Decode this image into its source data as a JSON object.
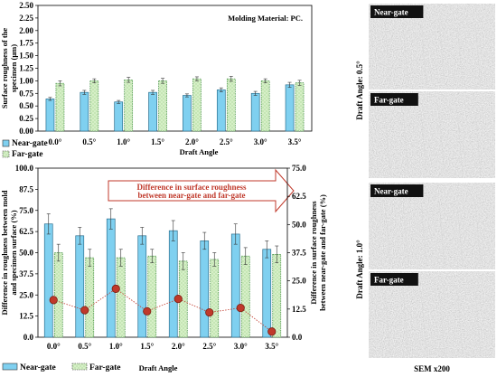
{
  "chart_data": [
    {
      "type": "bar",
      "categories": [
        "0.0°",
        "0.5°",
        "1.0°",
        "1.5°",
        "2.0°",
        "2.5°",
        "3.0°",
        "3.5°"
      ],
      "series": [
        {
          "name": "Near-gate",
          "values": [
            0.64,
            0.77,
            0.58,
            0.77,
            0.71,
            0.82,
            0.75,
            0.92
          ],
          "errors": [
            0.03,
            0.04,
            0.03,
            0.04,
            0.03,
            0.04,
            0.04,
            0.05
          ],
          "color": "#7fd0f0"
        },
        {
          "name": "Far-gate",
          "values": [
            0.95,
            1.0,
            1.02,
            1.0,
            1.04,
            1.04,
            1.0,
            0.96
          ],
          "errors": [
            0.05,
            0.04,
            0.05,
            0.05,
            0.04,
            0.05,
            0.04,
            0.05
          ],
          "color": "#d6efc7"
        }
      ],
      "title": "",
      "annotation": "Molding Material: PC.",
      "xlabel": "Draft Angle",
      "ylabel": [
        "Surface roughness of the",
        "specimen (μm)"
      ],
      "ylim": [
        0,
        2.5
      ],
      "yticks": [
        "0.00",
        "0.25",
        "0.50",
        "0.75",
        "1.00",
        "1.25",
        "1.50",
        "1.75",
        "2.00",
        "2.25",
        "2.50"
      ],
      "legend": "bottom-left"
    },
    {
      "type": "bar",
      "categories": [
        "0.0°",
        "0.5°",
        "1.0°",
        "1.5°",
        "2.0°",
        "2.5°",
        "3.0°",
        "3.5°"
      ],
      "series": [
        {
          "name": "Near-gate",
          "values": [
            67,
            60,
            70,
            60,
            63,
            57,
            61,
            52
          ],
          "errors": [
            6,
            5,
            6,
            5,
            6,
            5,
            6,
            5
          ],
          "color": "#7fd0f0"
        },
        {
          "name": "Far-gate",
          "values": [
            50,
            47,
            47,
            48,
            45,
            46,
            48,
            49
          ],
          "errors": [
            5,
            5,
            5,
            4,
            5,
            4,
            5,
            5
          ],
          "color": "#d6efc7"
        }
      ],
      "line_series": {
        "name": "Difference in surface roughness between near-gate and far-gate",
        "axis": "right",
        "values": [
          16.5,
          12,
          21.5,
          11.5,
          17,
          11,
          13,
          2.5
        ]
      },
      "title": "",
      "annotation": [
        "Difference in surface roughness",
        "between near-gate and far-gate"
      ],
      "xlabel": "Draft Angle",
      "ylabel_left": [
        "Difference in roughness between mold",
        "and specimen surface (%)"
      ],
      "ylabel_right": [
        "Difference in surface roughness",
        "between near-gate and far-gate (%)"
      ],
      "ylim_left": [
        0,
        100
      ],
      "ylim_right": [
        0,
        75
      ],
      "yticks_left": [
        "0.0",
        "12.5",
        "25.0",
        "37.5",
        "50.0",
        "62.5",
        "75.0",
        "87.5",
        "100.0"
      ],
      "yticks_right": [
        "0.0",
        "12.5",
        "25.0",
        "37.5",
        "50.0",
        "62.5",
        "75.0"
      ],
      "line_color": "#c0392b",
      "legend": "bottom-left"
    }
  ],
  "sem": {
    "panels": [
      {
        "label": "Near-gate"
      },
      {
        "label": "Far-gate"
      },
      {
        "label": "Near-gate"
      },
      {
        "label": "Far-gate"
      }
    ],
    "side_labels": [
      "Draft Angle: 0.5°",
      "Draft Angle: 1.0°"
    ],
    "magnification": "SEM x200"
  }
}
